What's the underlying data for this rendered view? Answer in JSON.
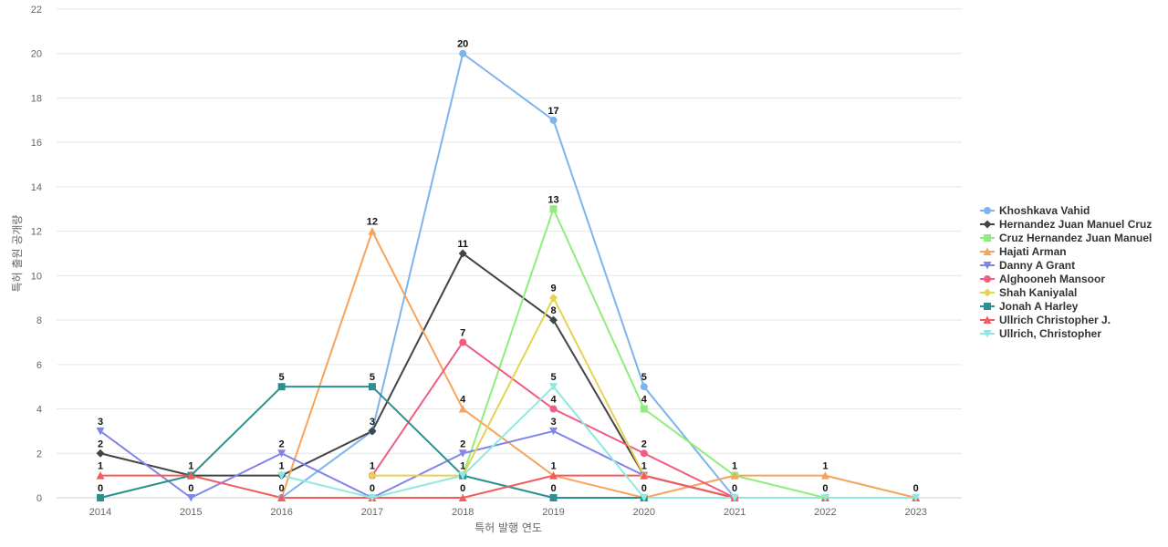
{
  "chart_data": {
    "type": "line",
    "title": "",
    "xlabel": "특허 발행 연도",
    "ylabel": "특허 출원 공개량",
    "x": [
      "2014",
      "2015",
      "2016",
      "2017",
      "2018",
      "2019",
      "2020",
      "2021",
      "2022",
      "2023"
    ],
    "ylim": [
      0,
      22
    ],
    "yticks": [
      0,
      2,
      4,
      6,
      8,
      10,
      12,
      14,
      16,
      18,
      20,
      22
    ],
    "grid": true,
    "legend_position": "right",
    "series": [
      {
        "name": "Khoshkava Vahid",
        "color": "#7cb5ec",
        "marker": "circle",
        "values": [
          null,
          null,
          0,
          3,
          20,
          17,
          5,
          0,
          null,
          null
        ]
      },
      {
        "name": "Hernandez Juan Manuel Cruz",
        "color": "#434348",
        "marker": "diamond",
        "values": [
          2,
          1,
          1,
          3,
          11,
          8,
          1,
          0,
          null,
          null
        ]
      },
      {
        "name": "Cruz Hernandez Juan Manuel",
        "color": "#90ed7d",
        "marker": "square",
        "values": [
          null,
          null,
          null,
          null,
          1,
          13,
          4,
          1,
          0,
          null
        ]
      },
      {
        "name": "Hajati Arman",
        "color": "#f7a35c",
        "marker": "triangle",
        "values": [
          null,
          null,
          0,
          12,
          4,
          1,
          0,
          1,
          1,
          0
        ]
      },
      {
        "name": "Danny A Grant",
        "color": "#8085e9",
        "marker": "triangle-down",
        "values": [
          3,
          0,
          2,
          0,
          2,
          3,
          1,
          0,
          null,
          null
        ]
      },
      {
        "name": "Alghooneh Mansoor",
        "color": "#f15c80",
        "marker": "circle",
        "values": [
          null,
          null,
          null,
          1,
          7,
          4,
          2,
          0,
          null,
          null
        ]
      },
      {
        "name": "Shah Kaniyalal",
        "color": "#e4d354",
        "marker": "diamond",
        "values": [
          null,
          null,
          null,
          1,
          1,
          9,
          1,
          null,
          null,
          null
        ]
      },
      {
        "name": "Jonah A Harley",
        "color": "#2b908f",
        "marker": "square",
        "values": [
          0,
          1,
          5,
          5,
          1,
          0,
          0,
          null,
          null,
          null
        ]
      },
      {
        "name": "Ullrich Christopher J.",
        "color": "#f45b5b",
        "marker": "triangle",
        "values": [
          1,
          1,
          0,
          0,
          0,
          1,
          1,
          0,
          0,
          0
        ]
      },
      {
        "name": "Ullrich, Christopher",
        "color": "#91e8e1",
        "marker": "triangle-down",
        "values": [
          null,
          null,
          1,
          0,
          1,
          5,
          0,
          0,
          0,
          0
        ]
      }
    ],
    "data_labels": [
      {
        "x": "2014",
        "y": 3,
        "text": "3"
      },
      {
        "x": "2014",
        "y": 2,
        "text": "2"
      },
      {
        "x": "2014",
        "y": 1,
        "text": "1"
      },
      {
        "x": "2014",
        "y": 0,
        "text": "0"
      },
      {
        "x": "2015",
        "y": 1,
        "text": "1"
      },
      {
        "x": "2015",
        "y": 0,
        "text": "0"
      },
      {
        "x": "2016",
        "y": 5,
        "text": "5"
      },
      {
        "x": "2016",
        "y": 2,
        "text": "2"
      },
      {
        "x": "2016",
        "y": 1,
        "text": "1"
      },
      {
        "x": "2016",
        "y": 0,
        "text": "0"
      },
      {
        "x": "2017",
        "y": 12,
        "text": "12"
      },
      {
        "x": "2017",
        "y": 5,
        "text": "5"
      },
      {
        "x": "2017",
        "y": 3,
        "text": "3"
      },
      {
        "x": "2017",
        "y": 1,
        "text": "1"
      },
      {
        "x": "2017",
        "y": 0,
        "text": "0"
      },
      {
        "x": "2018",
        "y": 20,
        "text": "20"
      },
      {
        "x": "2018",
        "y": 11,
        "text": "11"
      },
      {
        "x": "2018",
        "y": 7,
        "text": "7"
      },
      {
        "x": "2018",
        "y": 4,
        "text": "4"
      },
      {
        "x": "2018",
        "y": 2,
        "text": "2"
      },
      {
        "x": "2018",
        "y": 1,
        "text": "1"
      },
      {
        "x": "2018",
        "y": 0,
        "text": "0"
      },
      {
        "x": "2019",
        "y": 17,
        "text": "17"
      },
      {
        "x": "2019",
        "y": 13,
        "text": "13"
      },
      {
        "x": "2019",
        "y": 9,
        "text": "9"
      },
      {
        "x": "2019",
        "y": 8,
        "text": "8"
      },
      {
        "x": "2019",
        "y": 5,
        "text": "5"
      },
      {
        "x": "2019",
        "y": 4,
        "text": "4"
      },
      {
        "x": "2019",
        "y": 3,
        "text": "3"
      },
      {
        "x": "2019",
        "y": 1,
        "text": "1"
      },
      {
        "x": "2019",
        "y": 0,
        "text": "0"
      },
      {
        "x": "2020",
        "y": 5,
        "text": "5"
      },
      {
        "x": "2020",
        "y": 4,
        "text": "4"
      },
      {
        "x": "2020",
        "y": 2,
        "text": "2"
      },
      {
        "x": "2020",
        "y": 1,
        "text": "1"
      },
      {
        "x": "2020",
        "y": 0,
        "text": "0"
      },
      {
        "x": "2021",
        "y": 1,
        "text": "1"
      },
      {
        "x": "2021",
        "y": 0,
        "text": "0"
      },
      {
        "x": "2022",
        "y": 1,
        "text": "1"
      },
      {
        "x": "2022",
        "y": 0,
        "text": "0"
      },
      {
        "x": "2023",
        "y": 0,
        "text": "0"
      }
    ]
  }
}
